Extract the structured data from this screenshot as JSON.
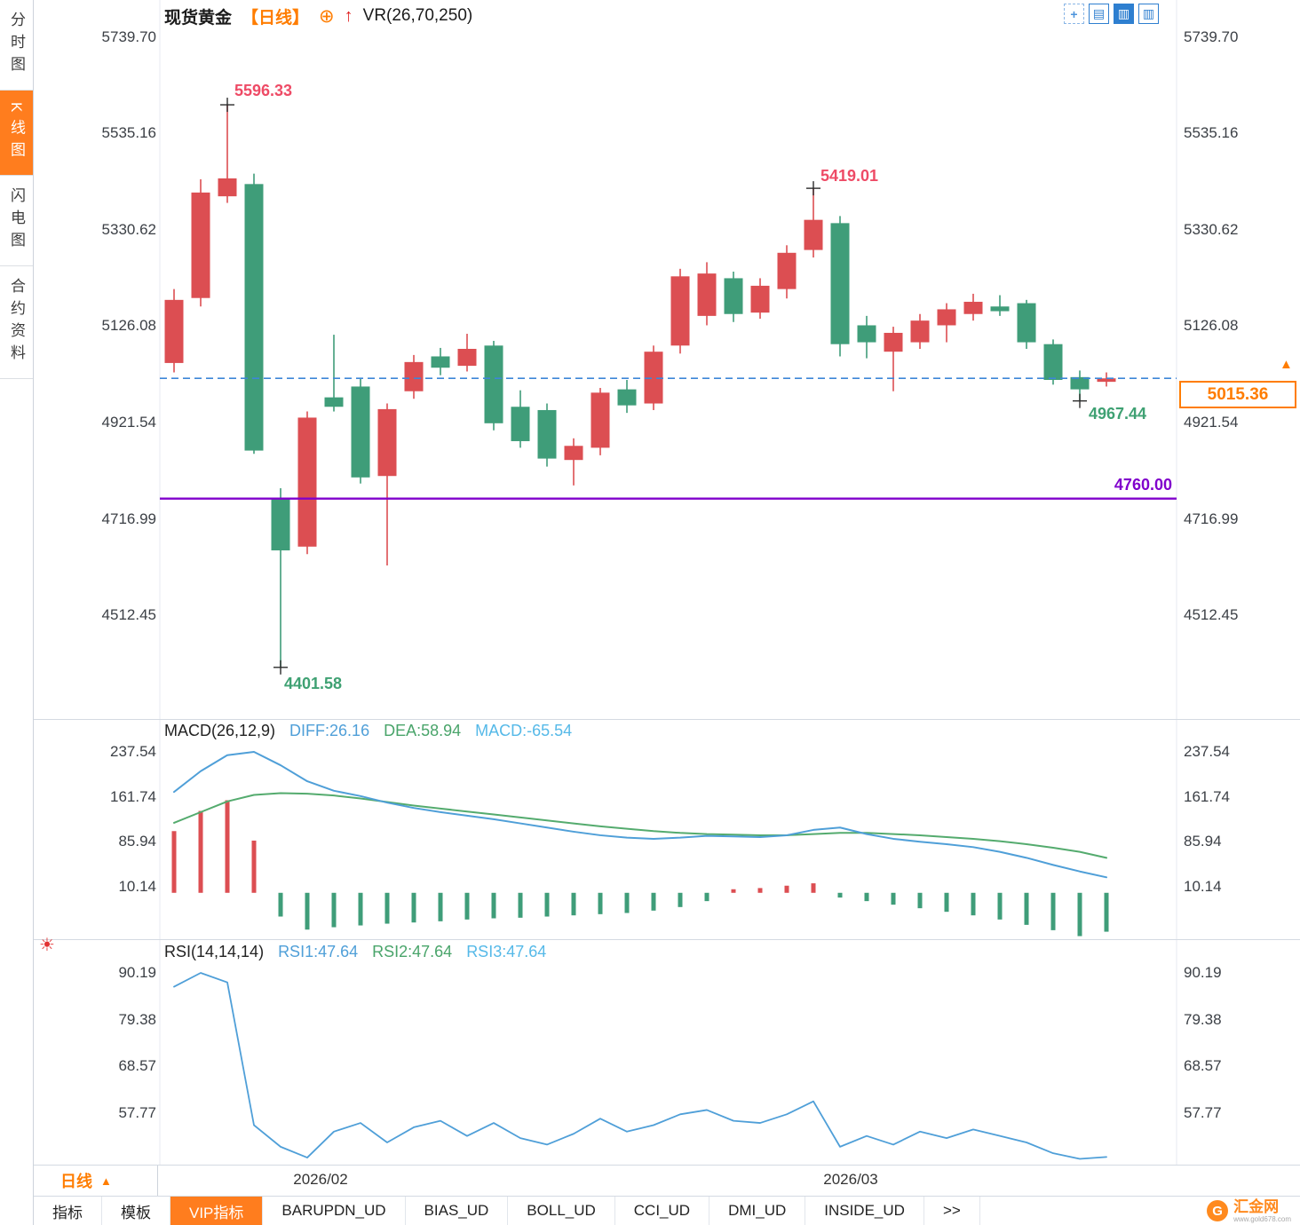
{
  "sidebar": {
    "items": [
      {
        "label": "分时图",
        "active": false
      },
      {
        "label": "K线图",
        "active": true
      },
      {
        "label": "闪电图",
        "active": false
      },
      {
        "label": "合约资料",
        "active": false
      }
    ]
  },
  "header": {
    "symbol": "现货黄金",
    "period": "【日线】",
    "indicator": "VR(26,70,250)"
  },
  "icons": {
    "move": "+",
    "grid": "▤",
    "bars": "▥",
    "split": "▥",
    "target": "⊕",
    "arrow_up": "↑",
    "sun": "☀",
    "triangle_up": "▲",
    "logo_glyph": "G"
  },
  "price_axis": [
    "5739.70",
    "5535.16",
    "5330.62",
    "5126.08",
    "4921.54",
    "4716.99",
    "4512.45"
  ],
  "annotations": {
    "high1": "5596.33",
    "high2": "5419.01",
    "low1": "4401.58",
    "low2": "4967.44",
    "support": "4760.00",
    "last_price": "5015.36"
  },
  "macd_panel": {
    "title": "MACD(26,12,9)",
    "diff": "DIFF:26.16",
    "dea": "DEA:58.94",
    "macd": "MACD:-65.54",
    "axis": [
      "237.54",
      "161.74",
      "85.94",
      "10.14"
    ]
  },
  "rsi_panel": {
    "title": "RSI(14,14,14)",
    "rsi1": "RSI1:47.64",
    "rsi2": "RSI2:47.64",
    "rsi3": "RSI3:47.64",
    "axis": [
      "90.19",
      "79.38",
      "68.57",
      "57.77"
    ]
  },
  "bottom": {
    "period": "日线"
  },
  "tabs": [
    {
      "label": "指标",
      "active": false
    },
    {
      "label": "模板",
      "active": false
    },
    {
      "label": "VIP指标",
      "active": true
    },
    {
      "label": "BARUPDN_UD",
      "active": false
    },
    {
      "label": "BIAS_UD",
      "active": false
    },
    {
      "label": "BOLL_UD",
      "active": false
    },
    {
      "label": "CCI_UD",
      "active": false
    },
    {
      "label": "DMI_UD",
      "active": false
    },
    {
      "label": "INSIDE_UD",
      "active": false
    },
    {
      "label": ">>",
      "active": false
    }
  ],
  "logo": {
    "name": "汇金网",
    "url": "www.gold678.com"
  },
  "colors": {
    "up": "#dc4e52",
    "down": "#3f9d79",
    "accent_orange": "#ff7d00",
    "annotation_red": "#ee4b66",
    "annotation_green": "#3fa173",
    "line_blue": "#4f9fd8",
    "line_green": "#54ab6e",
    "dashed_blue": "#3d86d8",
    "purple": "#8000cc",
    "label_light_blue": "#55b9e8"
  },
  "chart_data": {
    "type": "candlestick",
    "symbol": "现货黄金",
    "period": "日线",
    "overlay_indicator": "VR(26,70,250)",
    "candle_format": "open,high,low,close",
    "price_ticks": [
      5739.7,
      5535.16,
      5330.62,
      5126.08,
      4921.54,
      4716.99,
      4512.45
    ],
    "candles": [
      [
        5048,
        5205,
        5028,
        5182
      ],
      [
        5186,
        5438,
        5168,
        5410
      ],
      [
        5402,
        5596.33,
        5388,
        5440
      ],
      [
        5428,
        5450,
        4855,
        4862
      ],
      [
        4762,
        4782,
        4401.58,
        4650
      ],
      [
        4658,
        4945,
        4642,
        4932
      ],
      [
        4975,
        5108,
        4945,
        4955
      ],
      [
        4998,
        5015,
        4792,
        4805
      ],
      [
        4808,
        4962,
        4618,
        4950
      ],
      [
        4988,
        5065,
        4972,
        5050
      ],
      [
        5062,
        5080,
        5022,
        5038
      ],
      [
        5042,
        5110,
        5030,
        5078
      ],
      [
        5085,
        5095,
        4905,
        4920
      ],
      [
        4955,
        4990,
        4868,
        4882
      ],
      [
        4948,
        4962,
        4828,
        4845
      ],
      [
        4842,
        4888,
        4788,
        4872
      ],
      [
        4868,
        4995,
        4852,
        4985
      ],
      [
        4992,
        5012,
        4942,
        4958
      ],
      [
        4962,
        5085,
        4948,
        5072
      ],
      [
        5085,
        5248,
        5068,
        5232
      ],
      [
        5148,
        5262,
        5128,
        5238
      ],
      [
        5228,
        5242,
        5135,
        5152
      ],
      [
        5155,
        5228,
        5142,
        5212
      ],
      [
        5205,
        5298,
        5185,
        5282
      ],
      [
        5288,
        5419.01,
        5272,
        5352
      ],
      [
        5345,
        5360,
        5062,
        5088
      ],
      [
        5128,
        5148,
        5058,
        5092
      ],
      [
        5072,
        5125,
        4988,
        5112
      ],
      [
        5092,
        5152,
        5078,
        5138
      ],
      [
        5128,
        5175,
        5092,
        5162
      ],
      [
        5152,
        5195,
        5138,
        5178
      ],
      [
        5168,
        5192,
        5148,
        5158
      ],
      [
        5175,
        5182,
        5078,
        5092
      ],
      [
        5088,
        5098,
        5002,
        5012
      ],
      [
        5018,
        5032,
        4967.44,
        4992
      ],
      [
        5008,
        5028,
        4998,
        5015.36
      ]
    ],
    "last_price": 5015.36,
    "support_line": 4760.0,
    "markers": [
      {
        "index": 2,
        "at": "high",
        "label": "5596.33"
      },
      {
        "index": 24,
        "at": "high",
        "label": "5419.01"
      },
      {
        "index": 4,
        "at": "low",
        "label": "4401.58"
      },
      {
        "index": 34,
        "at": "low",
        "label": "4967.44"
      }
    ],
    "x_labels": [
      {
        "text": "2026/02",
        "index": 5.5
      },
      {
        "text": "2026/03",
        "index": 25.4
      }
    ],
    "macd": {
      "params": [
        26,
        12,
        9
      ],
      "ticks": [
        237.54,
        161.74,
        85.94,
        10.14
      ],
      "diff_last": 26.16,
      "dea_last": 58.94,
      "macd_last": -65.54,
      "diff": [
        170,
        205,
        232,
        237.5,
        215,
        188,
        172,
        163,
        152,
        143,
        136,
        130,
        124,
        117,
        110,
        103,
        97,
        93,
        91,
        93,
        96,
        95,
        94,
        97,
        106,
        110,
        99,
        91,
        86,
        82,
        77,
        69,
        59,
        47,
        36,
        26.16
      ],
      "dea": [
        118,
        136,
        154,
        165,
        168,
        167,
        164,
        159,
        153,
        147,
        142,
        137,
        132,
        127,
        122,
        117,
        112,
        108,
        104,
        101,
        99,
        98,
        97,
        97,
        99,
        101,
        101,
        99,
        97,
        94,
        91,
        87,
        82,
        76,
        69,
        58.94
      ],
      "hist": [
        104,
        138,
        156,
        88,
        -40,
        -62,
        -58,
        -55,
        -52,
        -50,
        -48,
        -45,
        -43,
        -42,
        -40,
        -38,
        -36,
        -34,
        -30,
        -24,
        -14,
        6,
        8,
        12,
        16,
        -8,
        -14,
        -20,
        -26,
        -32,
        -38,
        -45,
        -54,
        -63,
        -73,
        -65.54
      ]
    },
    "rsi": {
      "params": [
        14,
        14,
        14
      ],
      "ticks": [
        90.19,
        79.38,
        68.57,
        57.77
      ],
      "rsi1_last": 47.64,
      "rsi2_last": 47.64,
      "rsi3_last": 47.64,
      "values": [
        87,
        90.19,
        88,
        55,
        50,
        47.5,
        53.5,
        55.5,
        51,
        54.5,
        56,
        52.5,
        55.5,
        52,
        50.5,
        53,
        56.5,
        53.5,
        55,
        57.5,
        58.5,
        56,
        55.5,
        57.5,
        60.5,
        50,
        52.5,
        50.5,
        53.5,
        52,
        54,
        52.5,
        51,
        48.5,
        47.2,
        47.64
      ]
    }
  }
}
